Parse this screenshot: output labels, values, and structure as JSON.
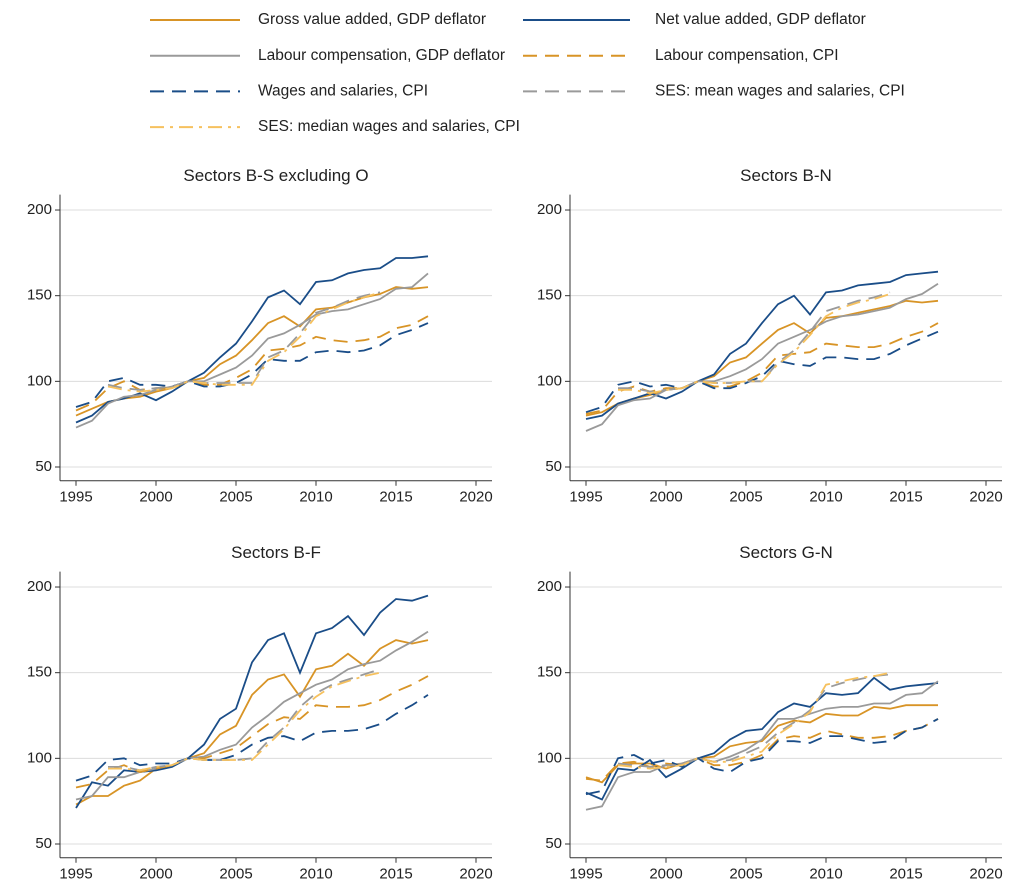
{
  "legend": {
    "entries": [
      {
        "name": "Gross value added, GDP deflator",
        "color": "#d89426",
        "dash": "solid"
      },
      {
        "name": "Net value added, GDP deflator",
        "color": "#1a4d88",
        "dash": "solid"
      },
      {
        "name": "Labour compensation, GDP deflator",
        "color": "#9a9a9a",
        "dash": "solid"
      },
      {
        "name": "Labour compensation, CPI",
        "color": "#d89426",
        "dash": "dashed"
      },
      {
        "name": "Wages and salaries, CPI",
        "color": "#1a4d88",
        "dash": "dashed"
      },
      {
        "name": "SES: mean wages and salaries, CPI",
        "color": "#9a9a9a",
        "dash": "dashed"
      },
      {
        "name": "SES: median wages and salaries, CPI",
        "color": "#f6c15e",
        "dash": "dashdot"
      }
    ]
  },
  "chart_data": [
    {
      "type": "line",
      "title": "Sectors B-S excluding O",
      "x": [
        1995,
        1996,
        1997,
        1998,
        1999,
        2000,
        2001,
        2002,
        2003,
        2004,
        2005,
        2006,
        2007,
        2008,
        2009,
        2010,
        2011,
        2012,
        2013,
        2014,
        2015,
        2016,
        2017
      ],
      "xlim": [
        1994,
        2021
      ],
      "xticks": [
        1995,
        2000,
        2005,
        2010,
        2015,
        2020
      ],
      "ylim": [
        42,
        209
      ],
      "yticks": [
        50,
        100,
        150,
        200
      ],
      "grid": true,
      "series": [
        {
          "values": [
            80,
            84,
            88,
            90,
            91,
            94,
            96,
            100,
            102,
            110,
            115,
            124,
            134,
            138,
            132,
            142,
            143,
            146,
            149,
            151,
            155,
            154,
            155
          ]
        },
        {
          "values": [
            76,
            80,
            88,
            90,
            93,
            89,
            94,
            100,
            105,
            114,
            122,
            135,
            149,
            153,
            145,
            158,
            159,
            163,
            165,
            166,
            172,
            172,
            173
          ]
        },
        {
          "values": [
            73,
            77,
            87,
            91,
            92,
            95,
            97,
            100,
            100,
            104,
            108,
            115,
            125,
            128,
            133,
            139,
            141,
            142,
            145,
            148,
            154,
            155,
            163
          ]
        },
        {
          "values": [
            83,
            87,
            96,
            100,
            95,
            96,
            96,
            100,
            98,
            98,
            102,
            107,
            118,
            119,
            121,
            126,
            124,
            123,
            124,
            126,
            131,
            133,
            138
          ]
        },
        {
          "values": [
            85,
            88,
            100,
            102,
            98,
            98,
            97,
            100,
            97,
            97,
            99,
            104,
            113,
            112,
            112,
            117,
            118,
            117,
            118,
            121,
            127,
            130,
            134
          ]
        },
        {
          "values": [
            null,
            null,
            98,
            96,
            95,
            96,
            97,
            100,
            99,
            99,
            99,
            99,
            114,
            118,
            128,
            140,
            143,
            147,
            150,
            152,
            null,
            null,
            null
          ]
        },
        {
          "values": [
            null,
            null,
            97,
            95,
            94,
            95,
            96,
            100,
            99,
            98,
            98,
            98,
            112,
            117,
            126,
            138,
            142,
            146,
            149,
            152,
            null,
            null,
            null
          ]
        }
      ]
    },
    {
      "type": "line",
      "title": "Sectors B-N",
      "x": [
        1995,
        1996,
        1997,
        1998,
        1999,
        2000,
        2001,
        2002,
        2003,
        2004,
        2005,
        2006,
        2007,
        2008,
        2009,
        2010,
        2011,
        2012,
        2013,
        2014,
        2015,
        2016,
        2017
      ],
      "xlim": [
        1994,
        2021
      ],
      "xticks": [
        1995,
        2000,
        2005,
        2010,
        2015,
        2020
      ],
      "ylim": [
        42,
        209
      ],
      "yticks": [
        50,
        100,
        150,
        200
      ],
      "grid": true,
      "series": [
        {
          "values": [
            80,
            82,
            87,
            90,
            92,
            95,
            96,
            100,
            103,
            111,
            114,
            122,
            130,
            134,
            128,
            137,
            138,
            140,
            142,
            144,
            147,
            146,
            147
          ]
        },
        {
          "values": [
            78,
            80,
            87,
            90,
            93,
            90,
            94,
            100,
            104,
            116,
            122,
            134,
            145,
            150,
            139,
            152,
            153,
            156,
            157,
            158,
            162,
            163,
            164
          ]
        },
        {
          "values": [
            71,
            75,
            86,
            89,
            90,
            95,
            96,
            100,
            100,
            103,
            107,
            113,
            122,
            126,
            130,
            135,
            138,
            139,
            141,
            143,
            148,
            151,
            157
          ]
        },
        {
          "values": [
            81,
            83,
            94,
            97,
            94,
            96,
            96,
            100,
            97,
            97,
            100,
            105,
            115,
            116,
            117,
            122,
            121,
            120,
            120,
            122,
            126,
            129,
            134
          ]
        },
        {
          "values": [
            82,
            85,
            98,
            100,
            97,
            98,
            96,
            100,
            96,
            96,
            99,
            103,
            112,
            110,
            109,
            114,
            114,
            113,
            113,
            116,
            121,
            125,
            129
          ]
        },
        {
          "values": [
            null,
            null,
            96,
            96,
            94,
            95,
            96,
            100,
            99,
            99,
            100,
            100,
            111,
            118,
            129,
            141,
            144,
            147,
            149,
            152,
            null,
            null,
            null
          ]
        },
        {
          "values": [
            null,
            null,
            95,
            95,
            93,
            95,
            96,
            100,
            99,
            99,
            100,
            100,
            110,
            117,
            127,
            138,
            143,
            146,
            148,
            151,
            null,
            null,
            null
          ]
        }
      ]
    },
    {
      "type": "line",
      "title": "Sectors B-F",
      "x": [
        1995,
        1996,
        1997,
        1998,
        1999,
        2000,
        2001,
        2002,
        2003,
        2004,
        2005,
        2006,
        2007,
        2008,
        2009,
        2010,
        2011,
        2012,
        2013,
        2014,
        2015,
        2016,
        2017
      ],
      "xlim": [
        1994,
        2021
      ],
      "xticks": [
        1995,
        2000,
        2005,
        2010,
        2015,
        2020
      ],
      "ylim": [
        42,
        209
      ],
      "yticks": [
        50,
        100,
        150,
        200
      ],
      "grid": true,
      "series": [
        {
          "values": [
            73,
            78,
            78,
            84,
            87,
            94,
            96,
            100,
            103,
            114,
            119,
            137,
            146,
            149,
            136,
            152,
            154,
            161,
            154,
            164,
            169,
            167,
            169
          ]
        },
        {
          "values": [
            71,
            86,
            84,
            93,
            92,
            93,
            95,
            100,
            108,
            123,
            129,
            156,
            169,
            173,
            150,
            173,
            176,
            183,
            172,
            185,
            193,
            192,
            195
          ]
        },
        {
          "values": [
            76,
            78,
            89,
            89,
            92,
            94,
            96,
            100,
            101,
            105,
            108,
            118,
            125,
            133,
            138,
            143,
            146,
            152,
            155,
            157,
            163,
            168,
            174
          ]
        },
        {
          "values": [
            83,
            85,
            93,
            96,
            92,
            94,
            96,
            100,
            100,
            103,
            106,
            113,
            120,
            124,
            123,
            131,
            130,
            130,
            131,
            134,
            139,
            143,
            148
          ]
        },
        {
          "values": [
            87,
            90,
            99,
            100,
            96,
            97,
            97,
            100,
            99,
            99,
            102,
            108,
            112,
            113,
            110,
            115,
            116,
            116,
            117,
            120,
            126,
            131,
            137
          ]
        },
        {
          "values": [
            null,
            null,
            95,
            95,
            93,
            95,
            96,
            100,
            99,
            99,
            99,
            100,
            110,
            118,
            130,
            138,
            143,
            146,
            149,
            152,
            null,
            null,
            null
          ]
        },
        {
          "values": [
            null,
            null,
            94,
            94,
            93,
            95,
            96,
            100,
            99,
            99,
            99,
            99,
            108,
            117,
            128,
            136,
            142,
            145,
            148,
            150,
            null,
            null,
            null
          ]
        }
      ]
    },
    {
      "type": "line",
      "title": "Sectors G-N",
      "x": [
        1995,
        1996,
        1997,
        1998,
        1999,
        2000,
        2001,
        2002,
        2003,
        2004,
        2005,
        2006,
        2007,
        2008,
        2009,
        2010,
        2011,
        2012,
        2013,
        2014,
        2015,
        2016,
        2017
      ],
      "xlim": [
        1994,
        2021
      ],
      "xticks": [
        1995,
        2000,
        2005,
        2010,
        2015,
        2020
      ],
      "ylim": [
        42,
        209
      ],
      "yticks": [
        50,
        100,
        150,
        200
      ],
      "grid": true,
      "series": [
        {
          "values": [
            89,
            86,
            96,
            97,
            97,
            94,
            97,
            100,
            101,
            107,
            109,
            110,
            119,
            122,
            121,
            126,
            125,
            125,
            130,
            129,
            131,
            131,
            131
          ]
        },
        {
          "values": [
            80,
            76,
            94,
            93,
            99,
            89,
            94,
            100,
            103,
            111,
            116,
            117,
            127,
            132,
            130,
            138,
            137,
            138,
            147,
            140,
            142,
            143,
            144
          ]
        },
        {
          "values": [
            70,
            72,
            89,
            92,
            92,
            96,
            97,
            100,
            98,
            101,
            105,
            111,
            123,
            123,
            126,
            129,
            130,
            130,
            132,
            132,
            137,
            138,
            145
          ]
        },
        {
          "values": [
            88,
            87,
            97,
            98,
            95,
            97,
            96,
            100,
            96,
            96,
            98,
            102,
            111,
            113,
            112,
            116,
            114,
            112,
            112,
            113,
            116,
            118,
            123
          ]
        },
        {
          "values": [
            79,
            81,
            100,
            102,
            97,
            99,
            95,
            100,
            94,
            92,
            98,
            100,
            110,
            110,
            109,
            113,
            113,
            111,
            109,
            110,
            116,
            118,
            123
          ]
        },
        {
          "values": [
            null,
            null,
            97,
            96,
            95,
            96,
            96,
            100,
            98,
            99,
            103,
            107,
            115,
            121,
            128,
            141,
            144,
            146,
            148,
            149,
            null,
            null,
            null
          ]
        },
        {
          "values": [
            null,
            null,
            96,
            95,
            94,
            95,
            96,
            100,
            98,
            98,
            101,
            104,
            114,
            120,
            127,
            143,
            145,
            147,
            148,
            150,
            null,
            null,
            null
          ]
        }
      ]
    }
  ]
}
